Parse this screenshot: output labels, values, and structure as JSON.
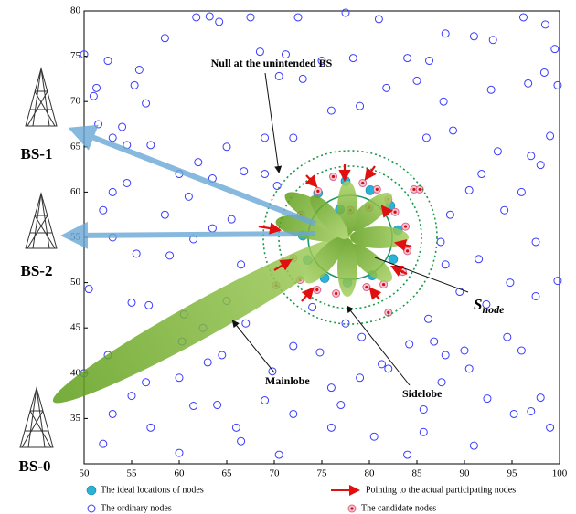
{
  "chart_data": {
    "type": "scatter",
    "xlim": [
      50,
      100
    ],
    "ylim": [
      30,
      80
    ],
    "xticks": [
      50,
      55,
      60,
      65,
      70,
      75,
      80,
      85,
      90,
      95,
      100
    ],
    "yticks": [
      35,
      40,
      45,
      50,
      55,
      60,
      65,
      70,
      75,
      80
    ],
    "annotations": {
      "null": "Null at the  unintended BS",
      "mainlobe": "Mainlobe",
      "sidelobe": "Sidelobe",
      "snode_main": "S",
      "snode_sub": "node",
      "bs0": "BS-0",
      "bs1": "BS-1",
      "bs2": "BS-2",
      "arrow_legend": "Pointing to the actual participating nodes"
    },
    "series": [
      {
        "name": "The ideal locations of nodes",
        "color": "#2ab3d6",
        "x": [
          74.6,
          77.5,
          80.1,
          82.2,
          83,
          82.5,
          80.3,
          77.7,
          75.3,
          73.5,
          73,
          76.9
        ],
        "values": [
          59.9,
          61.2,
          60.2,
          58.5,
          55.8,
          52.6,
          50.8,
          50,
          50.5,
          52.5,
          55.2,
          58.1
        ]
      },
      {
        "name": "The ordinary nodes",
        "color": "#3a3aff",
        "x": [
          50,
          51.3,
          51,
          52.5,
          51.5,
          53,
          54,
          54.5,
          56.5,
          55.3,
          55.8,
          58.5,
          61.8,
          63.2,
          64.2,
          67.5,
          72.5,
          68.5,
          71.2,
          73,
          70.5,
          75,
          77.5,
          78.3,
          81,
          84,
          86.3,
          88,
          91,
          93,
          96.2,
          98.5,
          99.5,
          98.4,
          99.8,
          96.7,
          92.8,
          87.8,
          85,
          81.8,
          79,
          76,
          72,
          69,
          65,
          62,
          60,
          57,
          53,
          52,
          54.5,
          58.5,
          61,
          63.5,
          65.5,
          69,
          70.3,
          61.5,
          59,
          55.5,
          53,
          50.5,
          55,
          56.8,
          60.5,
          60.3,
          62.5,
          65,
          66.5,
          67,
          64.5,
          60,
          55,
          52.5,
          50,
          53,
          56.5,
          57,
          60,
          52,
          63,
          61.5,
          64,
          66,
          66.5,
          69,
          70.5,
          72,
          69.8,
          72,
          74.8,
          76,
          76,
          77,
          79,
          82,
          80.5,
          84,
          85.7,
          85.7,
          87.6,
          90.5,
          91,
          92.4,
          95.2,
          97,
          99,
          98,
          96,
          94.5,
          92.3,
          91.5,
          89.5,
          94.8,
          97.5,
          99.8,
          97.5,
          96,
          94.2,
          91.8,
          93.5,
          97,
          99,
          98,
          88.8,
          86,
          90.5,
          88.5,
          87.5,
          88,
          86.2,
          86.8,
          84.2,
          81.3,
          88,
          90,
          79.2,
          77.5,
          74,
          66.8,
          63.5
        ],
        "values": [
          75.2,
          71.5,
          70.6,
          74.5,
          67.5,
          66,
          67.2,
          65.2,
          69.8,
          71.8,
          73.5,
          77,
          79.3,
          79.4,
          78.8,
          79.3,
          79.3,
          75.5,
          75.2,
          72.5,
          72.8,
          74.5,
          79.8,
          74.8,
          79.1,
          74.8,
          74.5,
          77.5,
          77.2,
          76.8,
          79.3,
          78.5,
          75.8,
          73.2,
          71.8,
          72,
          71.3,
          70,
          72.3,
          71.5,
          69.5,
          69,
          66,
          66,
          65,
          63.3,
          62,
          65.2,
          60,
          58,
          61,
          57.5,
          59.5,
          61.5,
          57,
          62,
          60.7,
          54.8,
          53,
          53.2,
          55,
          49.3,
          47.8,
          47.5,
          46.5,
          43.5,
          45,
          48,
          52,
          45.5,
          42,
          39.5,
          37.5,
          42,
          40,
          35.5,
          39,
          34,
          31.2,
          32.2,
          41.2,
          36.4,
          36.5,
          34,
          32.5,
          37,
          31,
          35.5,
          40.2,
          43,
          42.3,
          38.4,
          34,
          36.5,
          39.5,
          40.5,
          33,
          31,
          33.5,
          36,
          39,
          40.5,
          32,
          37.2,
          35.5,
          35.8,
          34,
          37.3,
          42.5,
          44,
          47.6,
          52.6,
          49,
          50,
          48.5,
          50.2,
          54.5,
          60,
          58,
          62,
          64.5,
          64,
          66.2,
          63,
          66.8,
          66,
          60.2,
          57.5,
          54.5,
          52,
          46,
          43.5,
          43.2,
          41,
          42,
          42.5,
          44,
          45.5,
          47.3,
          62.3,
          56
        ]
      },
      {
        "name": "The candidate nodes",
        "color": "#e0608a",
        "x": [
          74.6,
          76.2,
          79.3,
          80.8,
          82,
          82.7,
          83.8,
          84,
          83.5,
          81.5,
          79.7,
          76.5,
          74.5,
          72.7,
          72,
          72.8,
          78,
          80,
          84.7,
          85.3,
          82,
          70.2
        ],
        "values": [
          60.1,
          61.7,
          61,
          60.3,
          59.2,
          57.8,
          56.2,
          53.5,
          51.2,
          49.8,
          49.5,
          48.8,
          49.2,
          50.3,
          52.7,
          57.5,
          58,
          58.3,
          60.3,
          60.3,
          46.7,
          49.7
        ]
      }
    ]
  }
}
